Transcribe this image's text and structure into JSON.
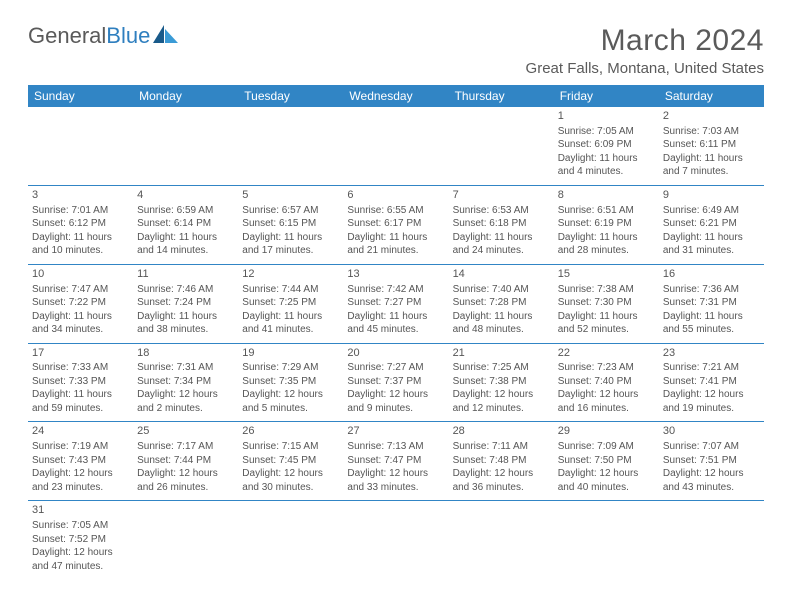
{
  "logo": {
    "text1": "General",
    "text2": "Blue"
  },
  "title": "March 2024",
  "location": "Great Falls, Montana, United States",
  "colors": {
    "header_bg": "#3185c5",
    "header_text": "#ffffff",
    "divider": "#3185c5",
    "text": "#555555",
    "logo_gray": "#5a5a5a",
    "logo_blue": "#2f7fbf"
  },
  "weekdays": [
    "Sunday",
    "Monday",
    "Tuesday",
    "Wednesday",
    "Thursday",
    "Friday",
    "Saturday"
  ],
  "weeks": [
    [
      null,
      null,
      null,
      null,
      null,
      {
        "n": "1",
        "sr": "Sunrise: 7:05 AM",
        "ss": "Sunset: 6:09 PM",
        "d1": "Daylight: 11 hours",
        "d2": "and 4 minutes."
      },
      {
        "n": "2",
        "sr": "Sunrise: 7:03 AM",
        "ss": "Sunset: 6:11 PM",
        "d1": "Daylight: 11 hours",
        "d2": "and 7 minutes."
      }
    ],
    [
      {
        "n": "3",
        "sr": "Sunrise: 7:01 AM",
        "ss": "Sunset: 6:12 PM",
        "d1": "Daylight: 11 hours",
        "d2": "and 10 minutes."
      },
      {
        "n": "4",
        "sr": "Sunrise: 6:59 AM",
        "ss": "Sunset: 6:14 PM",
        "d1": "Daylight: 11 hours",
        "d2": "and 14 minutes."
      },
      {
        "n": "5",
        "sr": "Sunrise: 6:57 AM",
        "ss": "Sunset: 6:15 PM",
        "d1": "Daylight: 11 hours",
        "d2": "and 17 minutes."
      },
      {
        "n": "6",
        "sr": "Sunrise: 6:55 AM",
        "ss": "Sunset: 6:17 PM",
        "d1": "Daylight: 11 hours",
        "d2": "and 21 minutes."
      },
      {
        "n": "7",
        "sr": "Sunrise: 6:53 AM",
        "ss": "Sunset: 6:18 PM",
        "d1": "Daylight: 11 hours",
        "d2": "and 24 minutes."
      },
      {
        "n": "8",
        "sr": "Sunrise: 6:51 AM",
        "ss": "Sunset: 6:19 PM",
        "d1": "Daylight: 11 hours",
        "d2": "and 28 minutes."
      },
      {
        "n": "9",
        "sr": "Sunrise: 6:49 AM",
        "ss": "Sunset: 6:21 PM",
        "d1": "Daylight: 11 hours",
        "d2": "and 31 minutes."
      }
    ],
    [
      {
        "n": "10",
        "sr": "Sunrise: 7:47 AM",
        "ss": "Sunset: 7:22 PM",
        "d1": "Daylight: 11 hours",
        "d2": "and 34 minutes."
      },
      {
        "n": "11",
        "sr": "Sunrise: 7:46 AM",
        "ss": "Sunset: 7:24 PM",
        "d1": "Daylight: 11 hours",
        "d2": "and 38 minutes."
      },
      {
        "n": "12",
        "sr": "Sunrise: 7:44 AM",
        "ss": "Sunset: 7:25 PM",
        "d1": "Daylight: 11 hours",
        "d2": "and 41 minutes."
      },
      {
        "n": "13",
        "sr": "Sunrise: 7:42 AM",
        "ss": "Sunset: 7:27 PM",
        "d1": "Daylight: 11 hours",
        "d2": "and 45 minutes."
      },
      {
        "n": "14",
        "sr": "Sunrise: 7:40 AM",
        "ss": "Sunset: 7:28 PM",
        "d1": "Daylight: 11 hours",
        "d2": "and 48 minutes."
      },
      {
        "n": "15",
        "sr": "Sunrise: 7:38 AM",
        "ss": "Sunset: 7:30 PM",
        "d1": "Daylight: 11 hours",
        "d2": "and 52 minutes."
      },
      {
        "n": "16",
        "sr": "Sunrise: 7:36 AM",
        "ss": "Sunset: 7:31 PM",
        "d1": "Daylight: 11 hours",
        "d2": "and 55 minutes."
      }
    ],
    [
      {
        "n": "17",
        "sr": "Sunrise: 7:33 AM",
        "ss": "Sunset: 7:33 PM",
        "d1": "Daylight: 11 hours",
        "d2": "and 59 minutes."
      },
      {
        "n": "18",
        "sr": "Sunrise: 7:31 AM",
        "ss": "Sunset: 7:34 PM",
        "d1": "Daylight: 12 hours",
        "d2": "and 2 minutes."
      },
      {
        "n": "19",
        "sr": "Sunrise: 7:29 AM",
        "ss": "Sunset: 7:35 PM",
        "d1": "Daylight: 12 hours",
        "d2": "and 5 minutes."
      },
      {
        "n": "20",
        "sr": "Sunrise: 7:27 AM",
        "ss": "Sunset: 7:37 PM",
        "d1": "Daylight: 12 hours",
        "d2": "and 9 minutes."
      },
      {
        "n": "21",
        "sr": "Sunrise: 7:25 AM",
        "ss": "Sunset: 7:38 PM",
        "d1": "Daylight: 12 hours",
        "d2": "and 12 minutes."
      },
      {
        "n": "22",
        "sr": "Sunrise: 7:23 AM",
        "ss": "Sunset: 7:40 PM",
        "d1": "Daylight: 12 hours",
        "d2": "and 16 minutes."
      },
      {
        "n": "23",
        "sr": "Sunrise: 7:21 AM",
        "ss": "Sunset: 7:41 PM",
        "d1": "Daylight: 12 hours",
        "d2": "and 19 minutes."
      }
    ],
    [
      {
        "n": "24",
        "sr": "Sunrise: 7:19 AM",
        "ss": "Sunset: 7:43 PM",
        "d1": "Daylight: 12 hours",
        "d2": "and 23 minutes."
      },
      {
        "n": "25",
        "sr": "Sunrise: 7:17 AM",
        "ss": "Sunset: 7:44 PM",
        "d1": "Daylight: 12 hours",
        "d2": "and 26 minutes."
      },
      {
        "n": "26",
        "sr": "Sunrise: 7:15 AM",
        "ss": "Sunset: 7:45 PM",
        "d1": "Daylight: 12 hours",
        "d2": "and 30 minutes."
      },
      {
        "n": "27",
        "sr": "Sunrise: 7:13 AM",
        "ss": "Sunset: 7:47 PM",
        "d1": "Daylight: 12 hours",
        "d2": "and 33 minutes."
      },
      {
        "n": "28",
        "sr": "Sunrise: 7:11 AM",
        "ss": "Sunset: 7:48 PM",
        "d1": "Daylight: 12 hours",
        "d2": "and 36 minutes."
      },
      {
        "n": "29",
        "sr": "Sunrise: 7:09 AM",
        "ss": "Sunset: 7:50 PM",
        "d1": "Daylight: 12 hours",
        "d2": "and 40 minutes."
      },
      {
        "n": "30",
        "sr": "Sunrise: 7:07 AM",
        "ss": "Sunset: 7:51 PM",
        "d1": "Daylight: 12 hours",
        "d2": "and 43 minutes."
      }
    ],
    [
      {
        "n": "31",
        "sr": "Sunrise: 7:05 AM",
        "ss": "Sunset: 7:52 PM",
        "d1": "Daylight: 12 hours",
        "d2": "and 47 minutes."
      },
      null,
      null,
      null,
      null,
      null,
      null
    ]
  ]
}
